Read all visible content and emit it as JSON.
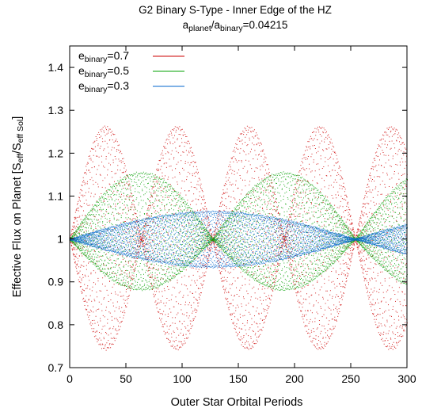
{
  "chart_data": {
    "type": "scatter",
    "title": "G2 Binary S-Type - Inner Edge of the HZ",
    "subtitle": {
      "a_symbol": "a",
      "planet_sub": "planet",
      "slash": "/",
      "binary_sub": "binary",
      "equals_value": "=0.04215"
    },
    "xlabel": "Outer Star Orbital Periods",
    "ylabel": {
      "prefix": "Effective Flux on Planet [S",
      "sub1": "eff",
      "middle": "/S",
      "sub2": "eff Sol",
      "suffix": "]"
    },
    "xlim": [
      0,
      300
    ],
    "ylim": [
      0.7,
      1.45
    ],
    "x_ticks": [
      0,
      50,
      100,
      150,
      200,
      250,
      300
    ],
    "x_tick_labels": [
      "0",
      "50",
      "100",
      "150",
      "200",
      "250",
      "300"
    ],
    "y_ticks": [
      0.7,
      0.8,
      0.9,
      1.0,
      1.1,
      1.2,
      1.3,
      1.4
    ],
    "y_tick_labels": [
      "0.7",
      "0.8",
      "0.9",
      "1",
      "1.1",
      "1.2",
      "1.3",
      "1.4"
    ],
    "grid": false,
    "legend_position": "top-left",
    "series": [
      {
        "legend_prefix": "e",
        "legend_sub": "binary",
        "legend_value": "=0.7",
        "color": "#cc0000",
        "amplitude": 0.26,
        "beat_period_x": 63.5,
        "offset": -0.01,
        "asymmetry": 0.05
      },
      {
        "legend_prefix": "e",
        "legend_sub": "binary",
        "legend_value": "=0.5",
        "color": "#00a000",
        "amplitude": 0.137,
        "beat_period_x": 127,
        "offset": 0.005,
        "asymmetry": 0.1
      },
      {
        "legend_prefix": "e",
        "legend_sub": "binary",
        "legend_value": "=0.3",
        "color": "#0066cc",
        "amplitude": 0.065,
        "beat_period_x": 254,
        "offset": 0.0,
        "asymmetry": 0.0
      }
    ]
  }
}
